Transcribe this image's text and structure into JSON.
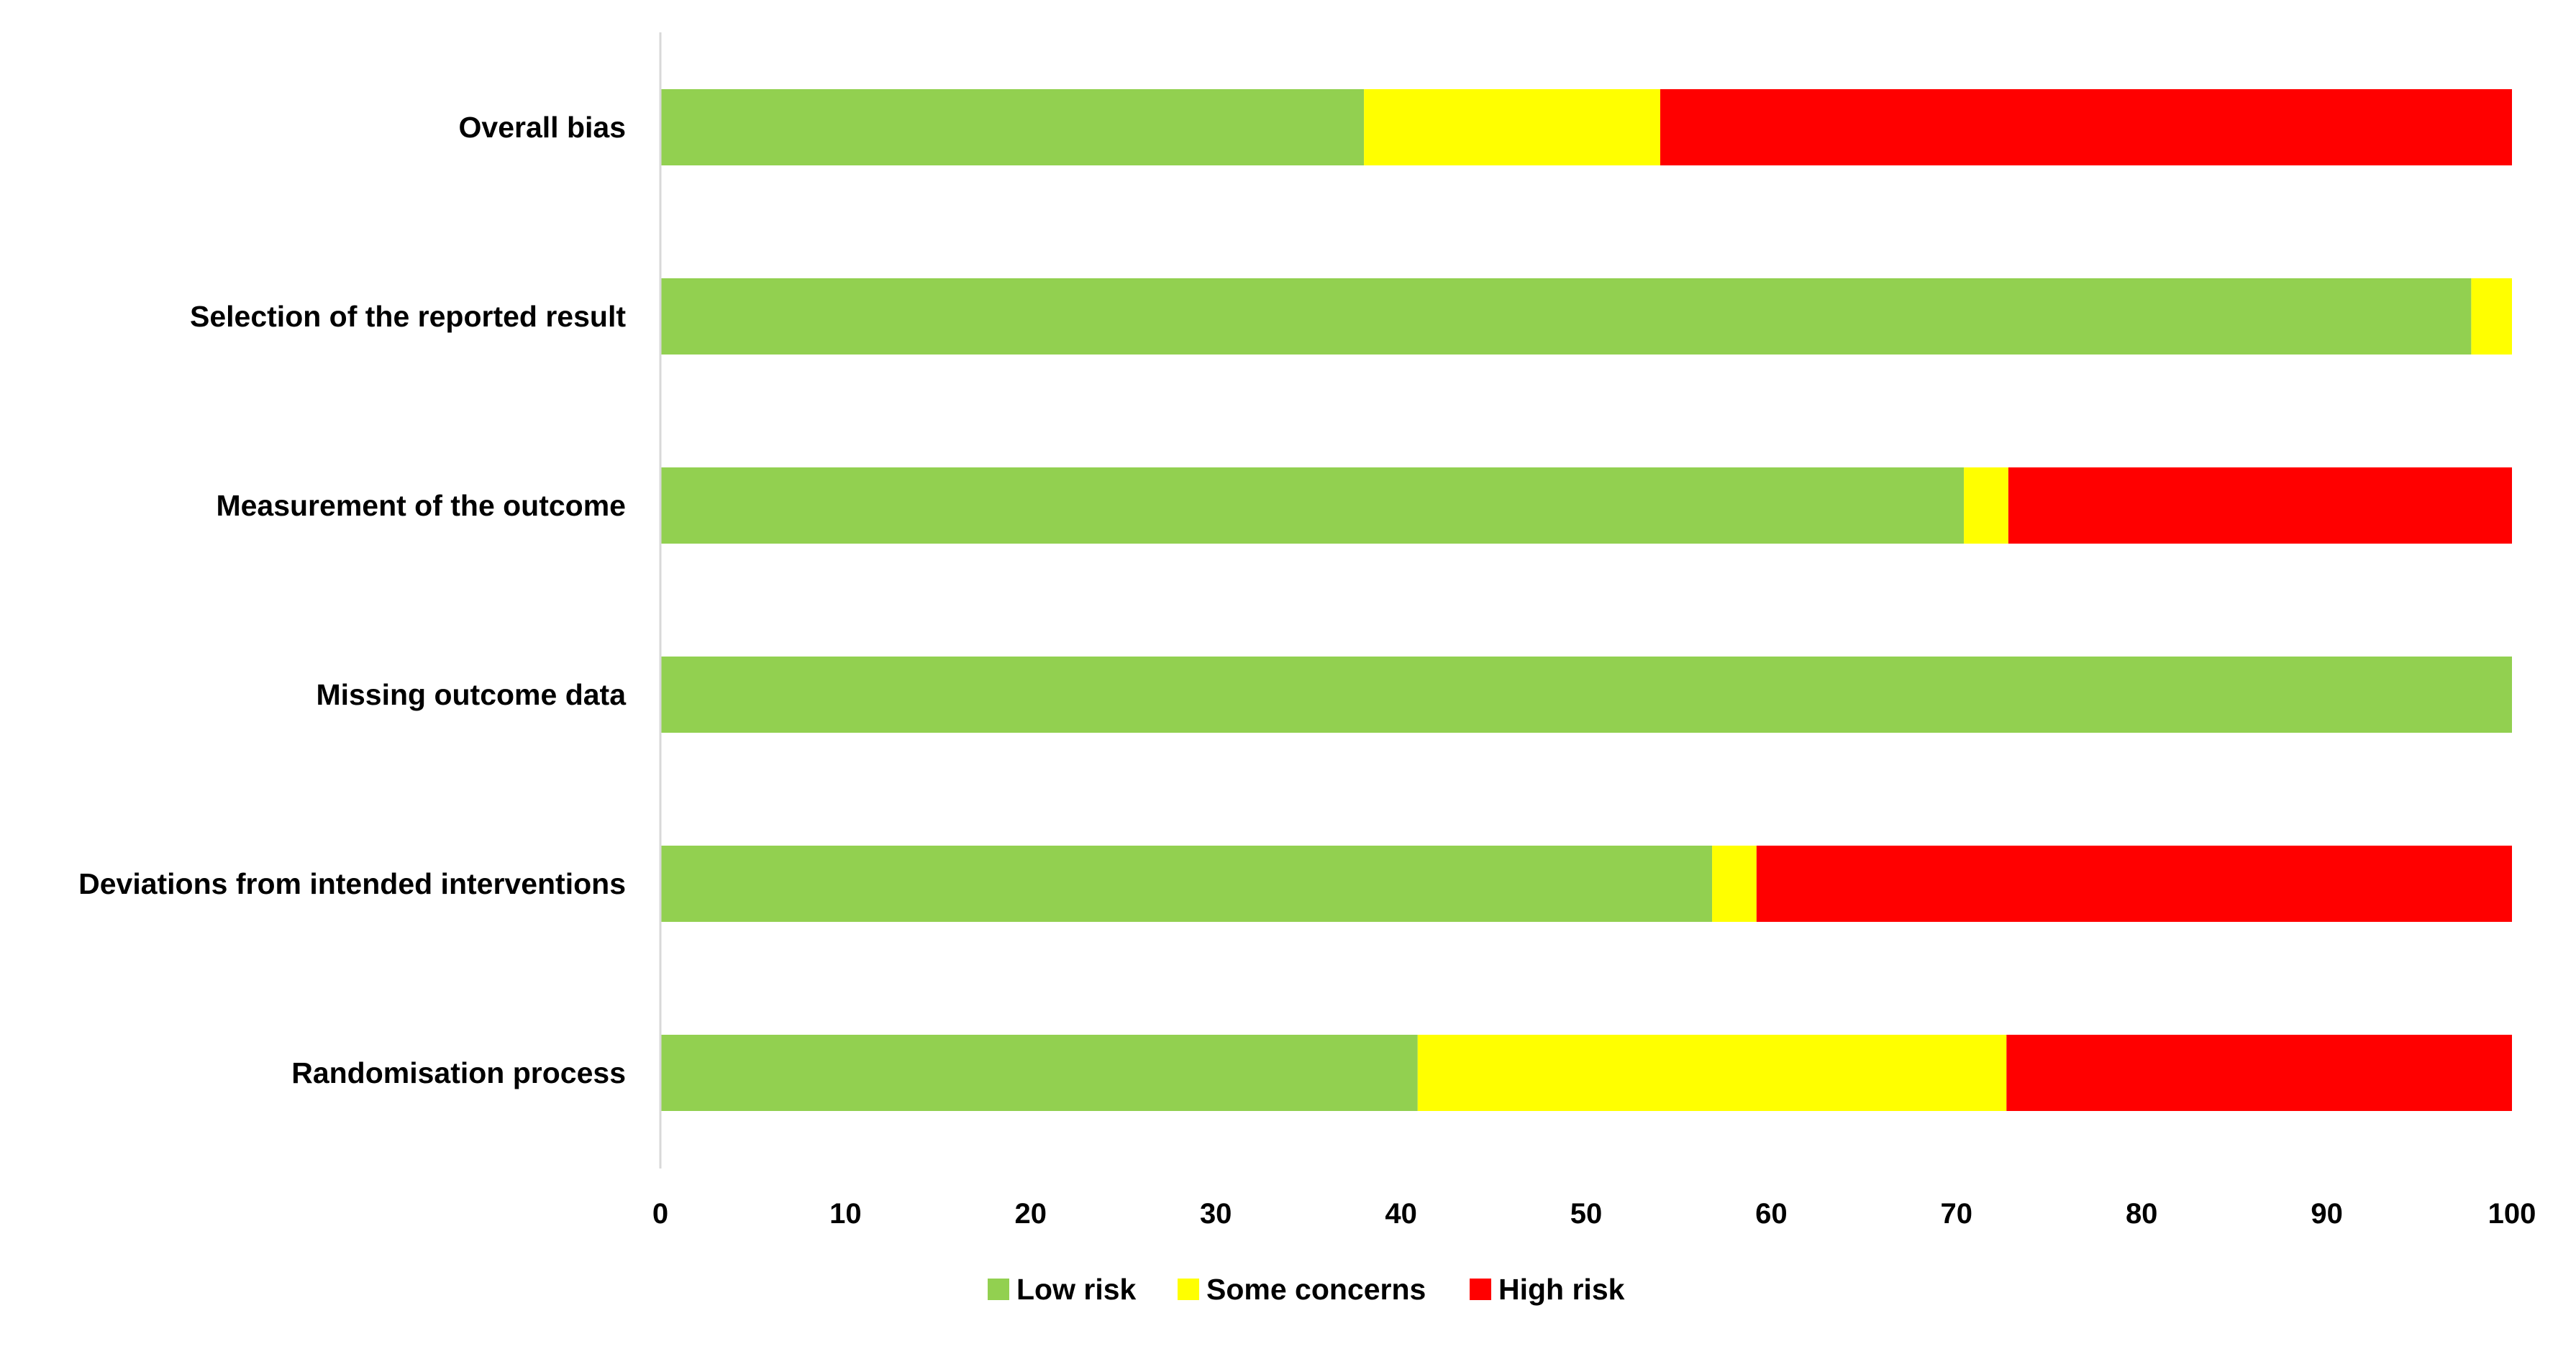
{
  "chart_data": {
    "type": "bar",
    "orientation": "horizontal",
    "stacked": true,
    "title": "",
    "xlabel": "",
    "ylabel": "",
    "xlim": [
      0,
      100
    ],
    "xticks": [
      0,
      10,
      20,
      30,
      40,
      50,
      60,
      70,
      80,
      90,
      100
    ],
    "grid": false,
    "legend_position": "bottom",
    "categories": [
      "Overall bias",
      "Selection of the reported result",
      "Measurement of the outcome",
      "Missing outcome data",
      "Deviations from intended interventions",
      "Randomisation process"
    ],
    "series": [
      {
        "name": "Low risk",
        "color": "#92d050",
        "values": [
          38,
          97.8,
          70.4,
          100,
          56.8,
          40.9
        ]
      },
      {
        "name": "Some concerns",
        "color": "#ffff00",
        "values": [
          16,
          2.2,
          2.4,
          0,
          2.4,
          31.8
        ]
      },
      {
        "name": "High risk",
        "color": "#ff0000",
        "values": [
          46,
          0,
          27.2,
          0,
          40.8,
          27.3
        ]
      }
    ]
  }
}
